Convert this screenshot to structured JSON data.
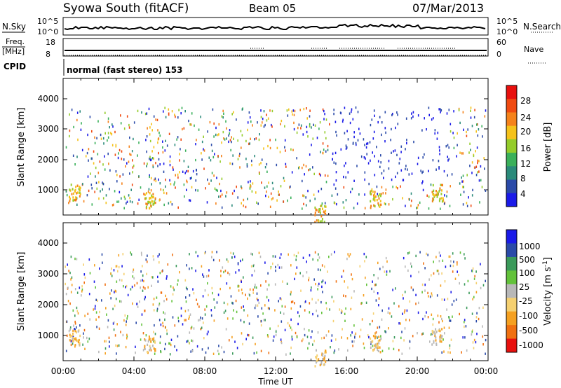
{
  "header": {
    "station": "Syowa South (fitACF)",
    "beam": "Beam 05",
    "date": "07/Mar/2013"
  },
  "top_panels": {
    "nsky_label": "N.Sky",
    "nsky_ticks": [
      "10^5",
      "10^0"
    ],
    "nsearch_label": "N.Search",
    "nsearch_ticks": [
      "10^5",
      "10^0"
    ],
    "freq_label": "Freq.",
    "freq_unit": "[MHz]",
    "freq_ticks": [
      "18",
      "8"
    ],
    "nave_label": "Nave",
    "nave_ticks": [
      "60",
      "0"
    ],
    "cpid_label": "CPID",
    "cpid_text": "normal (fast stereo) 153"
  },
  "chart_data": [
    {
      "type": "heatmap",
      "name": "power",
      "xlabel": "",
      "ylabel": "Slant Range [km]",
      "xlim": [
        0,
        24
      ],
      "ylim": [
        200,
        4700
      ],
      "yticks": [
        "1000",
        "2000",
        "3000",
        "4000"
      ],
      "colorbar_label": "Power [dB]",
      "colorbar_ticks": [
        "28",
        "24",
        "20",
        "16",
        "12",
        "8",
        "4"
      ],
      "colorbar_colors": [
        "#e8100e",
        "#f04a10",
        "#f5821a",
        "#f5c21a",
        "#94cc2a",
        "#3ab05a",
        "#2a8a7a",
        "#2a4aa8",
        "#1a1ae8"
      ]
    },
    {
      "type": "heatmap",
      "name": "velocity",
      "xlabel": "Time UT",
      "ylabel": "Slant Range [km]",
      "xlim": [
        0,
        24
      ],
      "ylim": [
        200,
        4700
      ],
      "yticks": [
        "1000",
        "2000",
        "3000",
        "4000"
      ],
      "xticks": [
        "00:00",
        "04:00",
        "08:00",
        "12:00",
        "16:00",
        "20:00",
        "00:00"
      ],
      "colorbar_label": "Velocity [m s",
      "colorbar_label_sup": "-1",
      "colorbar_label_end": "]",
      "colorbar_ticks": [
        "1000",
        "500",
        "100",
        "25",
        "-25",
        "-100",
        "-500",
        "-1000"
      ],
      "colorbar_colors": [
        "#1a1ae8",
        "#2a4aa8",
        "#3a9a5a",
        "#62c23a",
        "#b8b8b8",
        "#f5d070",
        "#f5a020",
        "#f07010",
        "#e8100e"
      ]
    }
  ]
}
